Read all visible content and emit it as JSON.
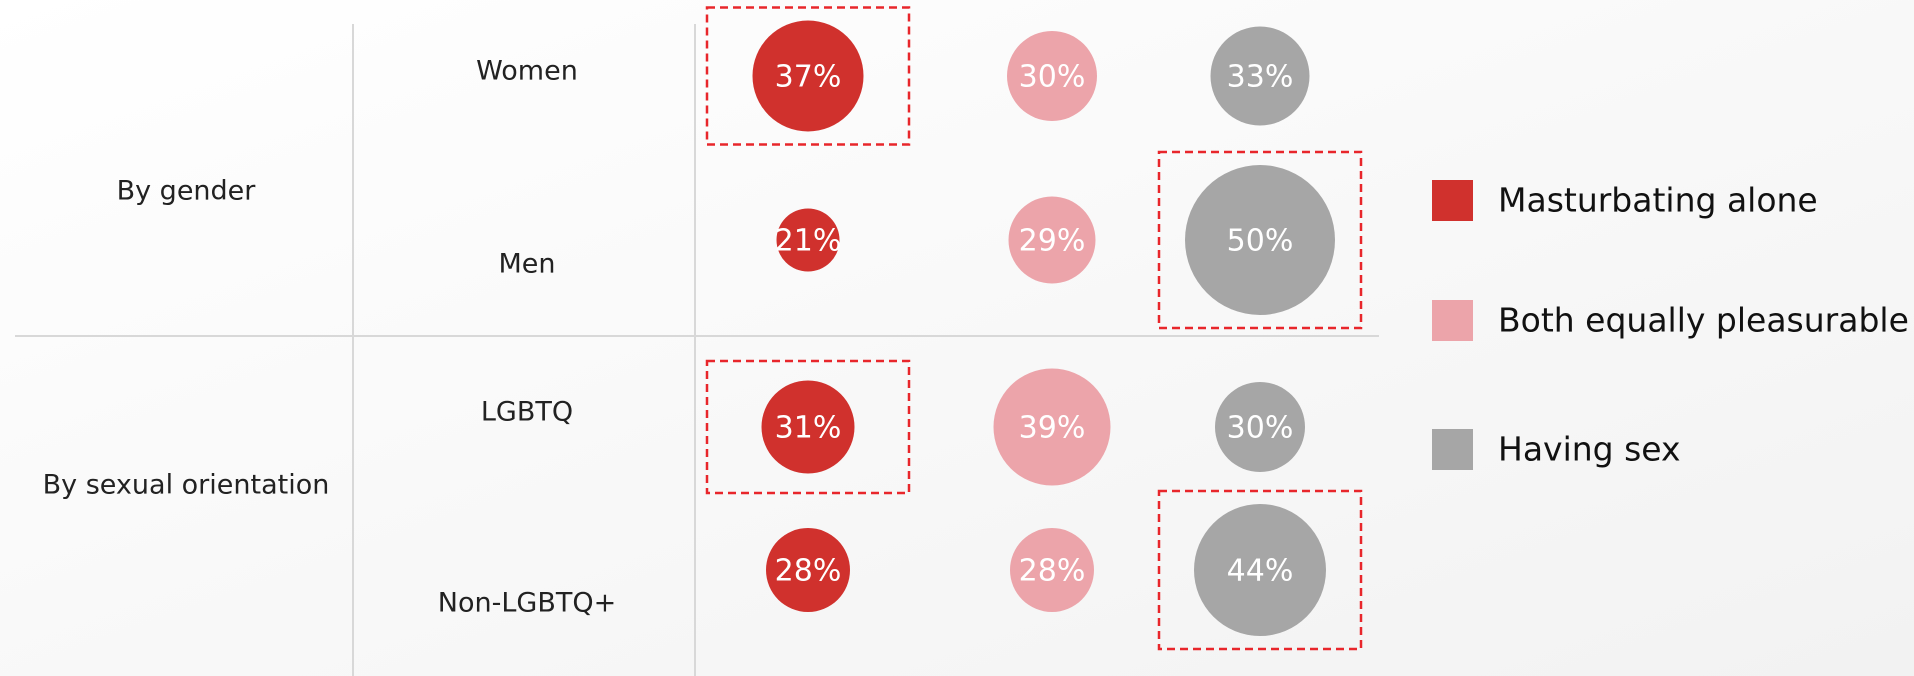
{
  "chart_data": {
    "type": "bubble",
    "groups": [
      "By gender",
      "By sexual orientation"
    ],
    "group_sizes": [
      2,
      2
    ],
    "categories": [
      "Women",
      "Men",
      "LGBTQ",
      "Non-LGBTQ+"
    ],
    "series": [
      {
        "name": "Masturbating alone",
        "color": "#d0312d",
        "values": [
          37,
          21,
          31,
          28
        ],
        "value_labels": [
          "37%",
          "21%",
          "31%",
          "28%"
        ]
      },
      {
        "name": "Both equally pleasurable",
        "color": "#eca4aa",
        "values": [
          30,
          29,
          39,
          28
        ],
        "value_labels": [
          "30%",
          "29%",
          "39%",
          "28%"
        ]
      },
      {
        "name": "Having sex",
        "color": "#a6a6a6",
        "values": [
          33,
          50,
          30,
          44
        ],
        "value_labels": [
          "33%",
          "50%",
          "30%",
          "44%"
        ]
      }
    ],
    "highlights": [
      {
        "series": 0,
        "category": 0
      },
      {
        "series": 2,
        "category": 1
      },
      {
        "series": 0,
        "category": 2
      },
      {
        "series": 2,
        "category": 3
      }
    ],
    "highlight_color": "#e8262b"
  }
}
